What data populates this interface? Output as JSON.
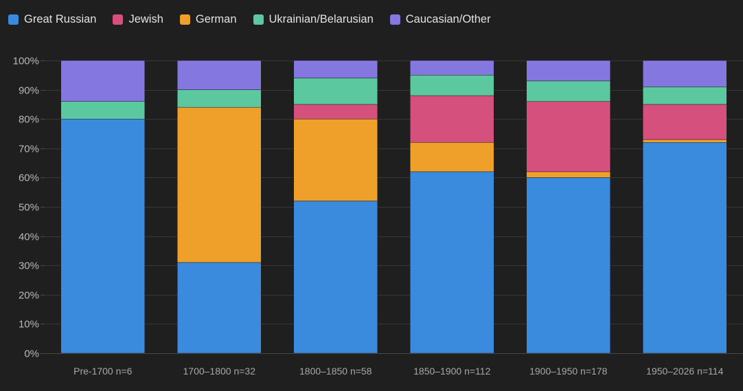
{
  "chart_data": {
    "type": "bar",
    "stacked": true,
    "title": "",
    "xlabel": "",
    "ylabel": "",
    "ylim": [
      0,
      100
    ],
    "y_ticks": [
      "0%",
      "10%",
      "20%",
      "30%",
      "40%",
      "50%",
      "60%",
      "70%",
      "80%",
      "90%",
      "100%"
    ],
    "grid": true,
    "legend_position": "top-left",
    "categories": [
      "Pre-1700 n=6",
      "1700–1800 n=32",
      "1800–1850 n=58",
      "1850–1900 n=112",
      "1900–1950 n=178",
      "1950–2026 n=114"
    ],
    "series": [
      {
        "name": "Great Russian",
        "color": "#3a8ade",
        "values": [
          80,
          31,
          52,
          62,
          60,
          72
        ]
      },
      {
        "name": "German",
        "color": "#eea02a",
        "values": [
          0,
          53,
          28,
          10,
          2,
          1
        ]
      },
      {
        "name": "Jewish",
        "color": "#d6507e",
        "values": [
          0,
          0,
          5,
          16,
          24,
          12
        ]
      },
      {
        "name": "Ukrainian/Belarusian",
        "color": "#5bc8a0",
        "values": [
          6,
          6,
          9,
          7,
          7,
          6
        ]
      },
      {
        "name": "Caucasian/Other",
        "color": "#8577e0",
        "values": [
          14,
          10,
          6,
          5,
          7,
          9
        ]
      }
    ]
  },
  "legend": {
    "items": [
      {
        "label": "Great Russian",
        "color": "#3a8ade"
      },
      {
        "label": "Jewish",
        "color": "#d6507e"
      },
      {
        "label": "German",
        "color": "#eea02a"
      },
      {
        "label": "Ukrainian/Belarusian",
        "color": "#5bc8a0"
      },
      {
        "label": "Caucasian/Other",
        "color": "#8577e0"
      }
    ]
  }
}
